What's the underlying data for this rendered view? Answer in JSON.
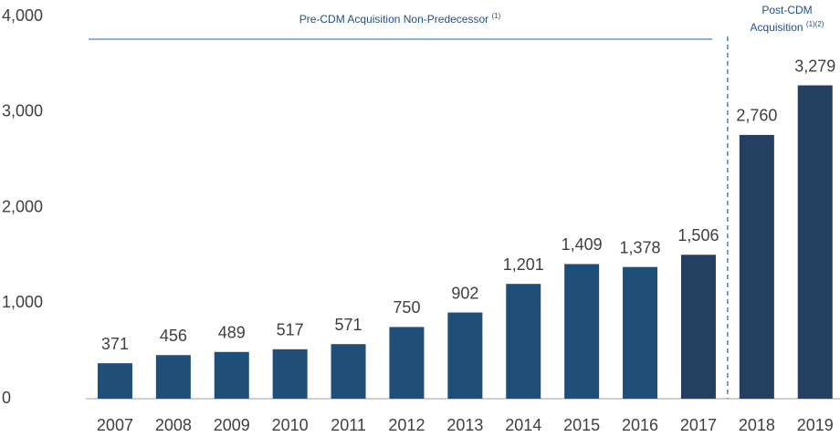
{
  "chart_data": {
    "type": "bar",
    "categories": [
      "2007",
      "2008",
      "2009",
      "2010",
      "2011",
      "2012",
      "2013",
      "2014",
      "2015",
      "2016",
      "2017",
      "2018",
      "2019"
    ],
    "values": [
      371,
      456,
      489,
      517,
      571,
      750,
      902,
      1201,
      1409,
      1378,
      1506,
      2760,
      3279
    ],
    "value_labels": [
      "371",
      "456",
      "489",
      "517",
      "571",
      "750",
      "902",
      "1,201",
      "1,409",
      "1,378",
      "1,506",
      "2,760",
      "3,279"
    ],
    "colors": [
      "#1f4e79",
      "#1f4e79",
      "#1f4e79",
      "#1f4e79",
      "#1f4e79",
      "#1f4e79",
      "#1f4e79",
      "#1f4e79",
      "#1f4e79",
      "#1f4e79",
      "#243f60",
      "#243f60",
      "#243f60"
    ],
    "ylim": [
      0,
      4000
    ],
    "yticks": [
      0,
      {
        "value": 1000,
        "label": "1,000"
      },
      {
        "value": 2000,
        "label": "2,000"
      },
      {
        "value": 3000,
        "label": "3,000"
      },
      {
        "value": 4000,
        "label": "4,000"
      }
    ],
    "annotations": [
      {
        "text": "Pre-CDM Acquisition Non-Predecessor",
        "note": "(1)"
      },
      {
        "lines": [
          "Post-CDM",
          "Acquisition"
        ],
        "note": "(1)(2)"
      }
    ]
  }
}
